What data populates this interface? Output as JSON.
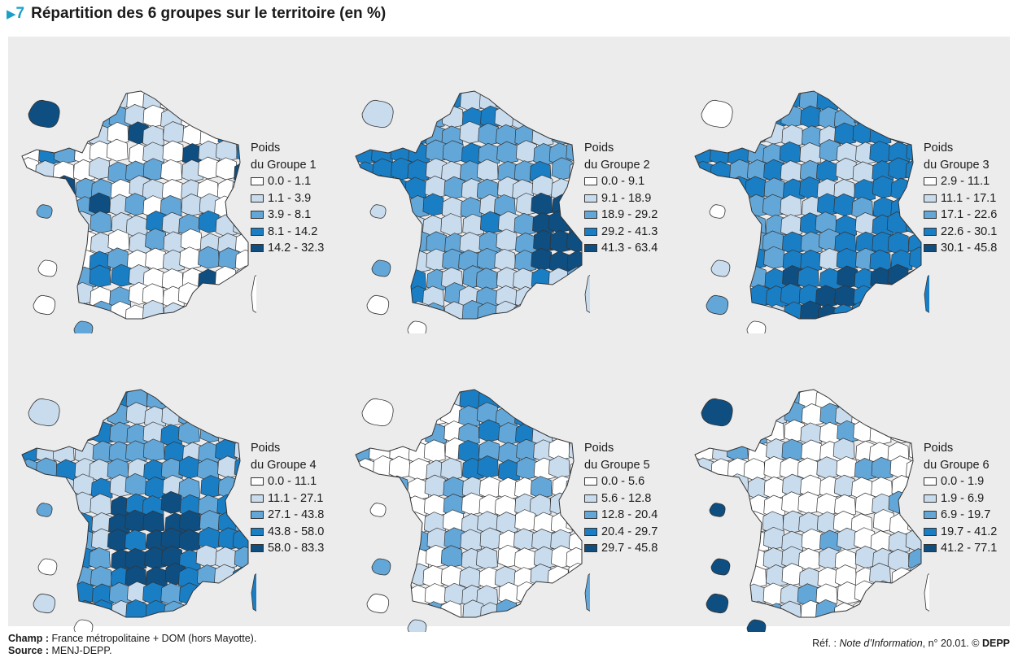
{
  "header": {
    "marker": "▶",
    "number": "7",
    "title": "Répartition des 6 groupes sur le territoire (en %)"
  },
  "colors": {
    "panel_bg": "#ececec",
    "class_colors": [
      "#ffffff",
      "#c9dcee",
      "#63a7d9",
      "#1a7ec5",
      "#0f4e80"
    ],
    "outline": "#333333",
    "accent": "#1aa0c8"
  },
  "maps": [
    {
      "legend_title_line1": "Poids",
      "legend_title_line2": "du Groupe 1",
      "classes": [
        "0.0 - 1.1",
        "1.1 - 3.9",
        "3.9 - 8.1",
        "8.1 - 14.2",
        "14.2 - 32.3"
      ],
      "focus": "scattered"
    },
    {
      "legend_title_line1": "Poids",
      "legend_title_line2": "du Groupe 2",
      "classes": [
        "0.0 - 9.1",
        "9.1 - 18.9",
        "18.9 - 29.2",
        "29.2 - 41.3",
        "41.3 - 63.4"
      ],
      "focus": "east-west"
    },
    {
      "legend_title_line1": "Poids",
      "legend_title_line2": "du Groupe 3",
      "classes": [
        "2.9 - 11.1",
        "11.1 - 17.1",
        "17.1 - 22.6",
        "22.6 - 30.1",
        "30.1 - 45.8"
      ],
      "focus": "south"
    },
    {
      "legend_title_line1": "Poids",
      "legend_title_line2": "du Groupe 4",
      "classes": [
        "0.0 - 11.1",
        "11.1 - 27.1",
        "27.1 - 43.8",
        "43.8 - 58.0",
        "58.0 - 83.3"
      ],
      "focus": "center"
    },
    {
      "legend_title_line1": "Poids",
      "legend_title_line2": "du Groupe 5",
      "classes": [
        "0.0 - 5.6",
        "5.6 - 12.8",
        "12.8 - 20.4",
        "20.4 - 29.7",
        "29.7 - 45.8"
      ],
      "focus": "north"
    },
    {
      "legend_title_line1": "Poids",
      "legend_title_line2": "du Groupe 6",
      "classes": [
        "0.0 - 1.9",
        "1.9 - 6.9",
        "6.9 - 19.7",
        "19.7 - 41.2",
        "41.2 - 77.1"
      ],
      "focus": "dom"
    }
  ],
  "footer": {
    "champ_label": "Champ :",
    "champ_text": "France métropolitaine + DOM (hors Mayotte).",
    "source_label": "Source :",
    "source_text": "MENJ-DEPP.",
    "ref_prefix": "Réf. :",
    "ref_pub": "Note d’Information",
    "ref_num": ", n° 20.01. ©",
    "ref_owner": "DEPP"
  }
}
